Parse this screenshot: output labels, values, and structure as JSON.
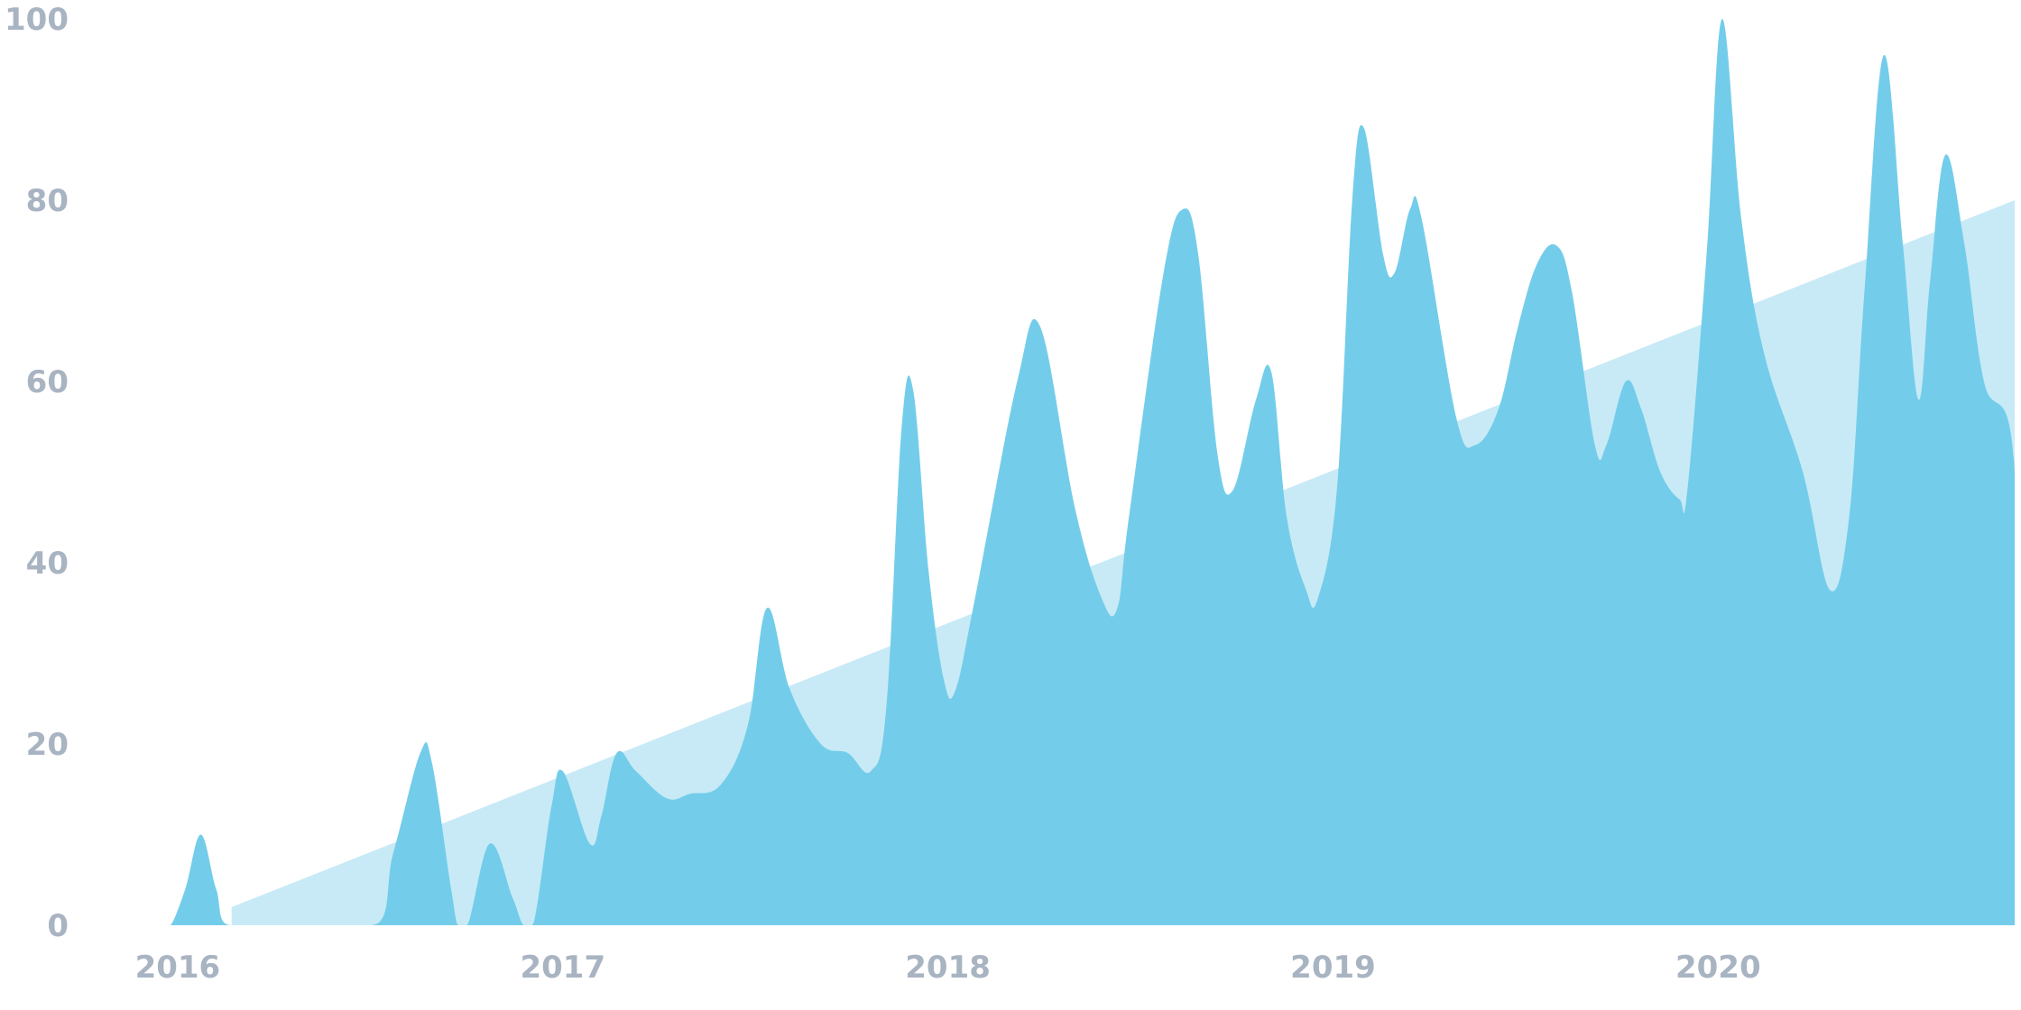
{
  "chart_data": {
    "type": "area",
    "title": "",
    "xlabel": "",
    "ylabel": "",
    "xlim": [
      2015.78,
      2020.77
    ],
    "ylim": [
      0,
      100
    ],
    "grid": false,
    "legend": "none",
    "x_ticks": [
      "2016",
      "2017",
      "2018",
      "2019",
      "2020"
    ],
    "y_ticks": [
      "0",
      "20",
      "40",
      "60",
      "80",
      "100"
    ],
    "colors": {
      "activity": "#73cdea",
      "trend": "#c8eaf6",
      "tick_text": "#a9b4c2"
    },
    "series": [
      {
        "kind": "spiky-area",
        "points": [
          [
            2015.98,
            0
          ],
          [
            2016.02,
            4
          ],
          [
            2016.06,
            10
          ],
          [
            2016.1,
            4
          ],
          [
            2016.14,
            0
          ],
          [
            2016.5,
            0
          ],
          [
            2016.56,
            8
          ],
          [
            2016.63,
            19
          ],
          [
            2016.66,
            18
          ],
          [
            2016.71,
            4
          ],
          [
            2016.73,
            0
          ],
          [
            2016.75,
            0
          ],
          [
            2016.81,
            9
          ],
          [
            2016.87,
            3
          ],
          [
            2016.9,
            0
          ],
          [
            2016.92,
            0
          ],
          [
            2016.97,
            13
          ],
          [
            2017.0,
            17
          ],
          [
            2017.07,
            9
          ],
          [
            2017.1,
            12
          ],
          [
            2017.14,
            19
          ],
          [
            2017.19,
            17
          ],
          [
            2017.27,
            14
          ],
          [
            2017.33,
            14.5
          ],
          [
            2017.41,
            15.5
          ],
          [
            2017.48,
            22
          ],
          [
            2017.53,
            35
          ],
          [
            2017.59,
            26
          ],
          [
            2017.67,
            20
          ],
          [
            2017.74,
            19
          ],
          [
            2017.8,
            17
          ],
          [
            2017.84,
            24
          ],
          [
            2017.88,
            55
          ],
          [
            2017.91,
            59
          ],
          [
            2017.95,
            39
          ],
          [
            2017.99,
            27
          ],
          [
            2018.02,
            26
          ],
          [
            2018.07,
            36
          ],
          [
            2018.18,
            60
          ],
          [
            2018.24,
            66
          ],
          [
            2018.33,
            46
          ],
          [
            2018.4,
            36
          ],
          [
            2018.44,
            35
          ],
          [
            2018.47,
            45
          ],
          [
            2018.56,
            72
          ],
          [
            2018.61,
            79
          ],
          [
            2018.65,
            74
          ],
          [
            2018.7,
            52
          ],
          [
            2018.74,
            48
          ],
          [
            2018.8,
            58
          ],
          [
            2018.84,
            61
          ],
          [
            2018.88,
            45
          ],
          [
            2018.93,
            37
          ],
          [
            2018.96,
            36
          ],
          [
            2019.01,
            48
          ],
          [
            2019.05,
            80
          ],
          [
            2019.08,
            88
          ],
          [
            2019.13,
            74
          ],
          [
            2019.16,
            72
          ],
          [
            2019.2,
            79
          ],
          [
            2019.23,
            78
          ],
          [
            2019.32,
            56
          ],
          [
            2019.37,
            53
          ],
          [
            2019.43,
            57
          ],
          [
            2019.48,
            66
          ],
          [
            2019.53,
            73
          ],
          [
            2019.58,
            75
          ],
          [
            2019.62,
            70
          ],
          [
            2019.68,
            53
          ],
          [
            2019.71,
            53
          ],
          [
            2019.76,
            60
          ],
          [
            2019.8,
            57
          ],
          [
            2019.85,
            50
          ],
          [
            2019.9,
            47
          ],
          [
            2019.92,
            48
          ],
          [
            2019.97,
            74
          ],
          [
            2020.01,
            100
          ],
          [
            2020.06,
            78
          ],
          [
            2020.12,
            63
          ],
          [
            2020.22,
            50
          ],
          [
            2020.29,
            37
          ],
          [
            2020.34,
            45
          ],
          [
            2020.38,
            70
          ],
          [
            2020.43,
            96
          ],
          [
            2020.48,
            75
          ],
          [
            2020.52,
            58
          ],
          [
            2020.55,
            71
          ],
          [
            2020.59,
            85
          ],
          [
            2020.64,
            75
          ],
          [
            2020.69,
            60
          ],
          [
            2020.77,
            50
          ],
          [
            2020.77,
            0
          ]
        ]
      },
      {
        "kind": "trend-area",
        "points": [
          [
            2016.14,
            2
          ],
          [
            2020.77,
            80
          ],
          [
            2020.77,
            0
          ],
          [
            2016.14,
            0
          ]
        ]
      }
    ]
  }
}
